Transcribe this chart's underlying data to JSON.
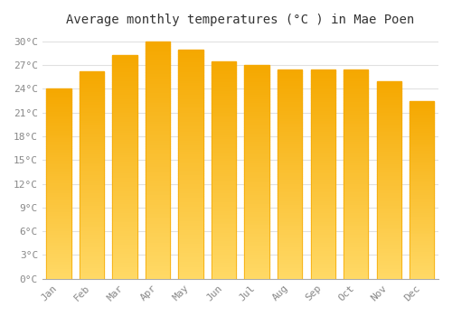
{
  "title": "Average monthly temperatures (°C ) in Mae Poen",
  "months": [
    "Jan",
    "Feb",
    "Mar",
    "Apr",
    "May",
    "Jun",
    "Jul",
    "Aug",
    "Sep",
    "Oct",
    "Nov",
    "Dec"
  ],
  "values": [
    24.0,
    26.2,
    28.3,
    30.0,
    29.0,
    27.5,
    27.0,
    26.5,
    26.5,
    26.5,
    25.0,
    22.5
  ],
  "bar_color_top": "#F5A800",
  "bar_color_bottom": "#FFD966",
  "ylim": [
    0,
    31
  ],
  "yticks": [
    0,
    3,
    6,
    9,
    12,
    15,
    18,
    21,
    24,
    27,
    30
  ],
  "ytick_labels": [
    "0°C",
    "3°C",
    "6°C",
    "9°C",
    "12°C",
    "15°C",
    "18°C",
    "21°C",
    "24°C",
    "27°C",
    "30°C"
  ],
  "background_color": "#FFFFFF",
  "grid_color": "#E0E0E0",
  "title_fontsize": 10,
  "tick_fontsize": 8,
  "bar_width": 0.75
}
